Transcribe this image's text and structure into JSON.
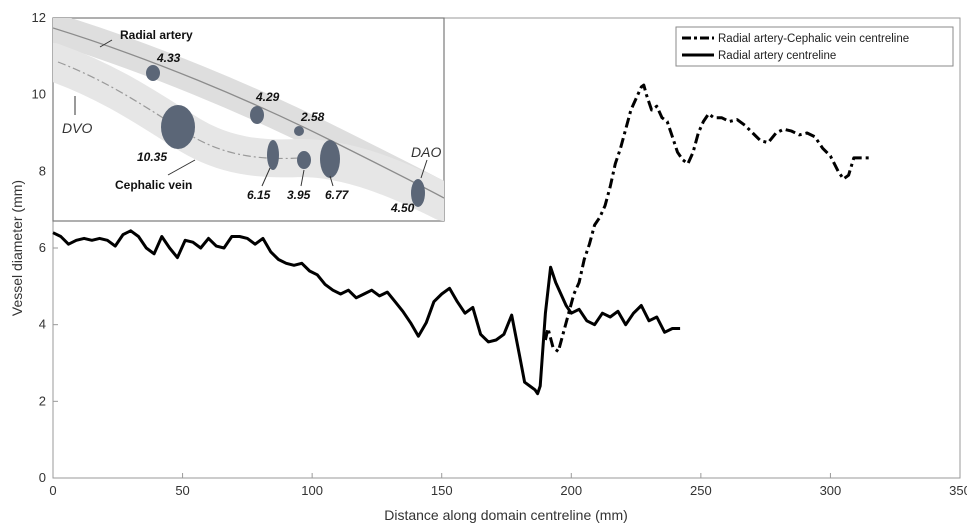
{
  "chart_data": {
    "type": "line",
    "xlabel": "Distance along domain centreline (mm)",
    "ylabel": "Vessel diameter (mm)",
    "xlim": [
      0,
      350
    ],
    "ylim": [
      0,
      12
    ],
    "xticks": [
      0,
      50,
      100,
      150,
      200,
      250,
      300,
      350
    ],
    "yticks": [
      0,
      2,
      4,
      6,
      8,
      10,
      12
    ],
    "grid": false,
    "legend_position": "top-right",
    "series": [
      {
        "name": "Radial artery-Cephalic vein centreline",
        "style": "dash-dot",
        "color": "#000000",
        "x": [
          190,
          191,
          193,
          195,
          197,
          199,
          201,
          203,
          205,
          207,
          209,
          211,
          213,
          215,
          217,
          219,
          221,
          223,
          225,
          227,
          228,
          229,
          231,
          233,
          235,
          237,
          239,
          241,
          243,
          245,
          247,
          249,
          251,
          253,
          255,
          258,
          261,
          264,
          267,
          270,
          273,
          276,
          279,
          282,
          285,
          288,
          291,
          294,
          297,
          300,
          303,
          305,
          307,
          309,
          311,
          313,
          315
        ],
        "y": [
          3.6,
          3.9,
          3.4,
          3.3,
          3.8,
          4.3,
          4.8,
          5.1,
          5.7,
          6.1,
          6.6,
          6.8,
          7.1,
          7.6,
          8.2,
          8.6,
          9.1,
          9.6,
          9.9,
          10.2,
          10.25,
          10.0,
          9.6,
          9.7,
          9.4,
          9.3,
          8.9,
          8.5,
          8.3,
          8.2,
          8.5,
          9.0,
          9.3,
          9.5,
          9.4,
          9.4,
          9.3,
          9.35,
          9.2,
          9.0,
          8.8,
          8.75,
          9.0,
          9.1,
          9.05,
          8.95,
          9.0,
          8.9,
          8.6,
          8.4,
          8.0,
          7.8,
          7.9,
          8.35,
          8.35,
          8.35,
          8.35
        ]
      },
      {
        "name": "Radial artery centreline",
        "style": "solid",
        "color": "#000000",
        "x": [
          0,
          3,
          6,
          9,
          12,
          15,
          18,
          21,
          24,
          27,
          30,
          33,
          36,
          39,
          42,
          45,
          48,
          51,
          54,
          57,
          60,
          63,
          66,
          69,
          72,
          75,
          78,
          81,
          84,
          87,
          90,
          93,
          96,
          99,
          102,
          105,
          108,
          111,
          114,
          117,
          120,
          123,
          126,
          129,
          132,
          135,
          138,
          141,
          144,
          147,
          150,
          153,
          156,
          159,
          162,
          165,
          168,
          171,
          174,
          177,
          180,
          182,
          184,
          186,
          187,
          188,
          190,
          192,
          194,
          196,
          198,
          200,
          203,
          206,
          209,
          212,
          215,
          218,
          221,
          224,
          227,
          230,
          233,
          236,
          239,
          242
        ],
        "y": [
          6.4,
          6.3,
          6.1,
          6.2,
          6.25,
          6.2,
          6.25,
          6.2,
          6.05,
          6.35,
          6.45,
          6.3,
          6.0,
          5.85,
          6.3,
          6.0,
          5.75,
          6.2,
          6.15,
          6.0,
          6.25,
          6.05,
          6.0,
          6.3,
          6.3,
          6.25,
          6.1,
          6.25,
          5.9,
          5.7,
          5.6,
          5.55,
          5.6,
          5.4,
          5.3,
          5.05,
          4.9,
          4.8,
          4.9,
          4.7,
          4.8,
          4.9,
          4.75,
          4.85,
          4.6,
          4.35,
          4.05,
          3.7,
          4.05,
          4.6,
          4.8,
          4.95,
          4.6,
          4.3,
          4.45,
          3.75,
          3.55,
          3.6,
          3.75,
          4.25,
          3.2,
          2.5,
          2.4,
          2.3,
          2.2,
          2.4,
          4.3,
          5.5,
          5.1,
          4.8,
          4.5,
          4.3,
          4.4,
          4.1,
          4.0,
          4.3,
          4.2,
          4.35,
          4.0,
          4.3,
          4.5,
          4.1,
          4.2,
          3.8,
          3.9,
          3.9
        ]
      }
    ]
  },
  "inset": {
    "artery_label": "Radial artery",
    "vein_label": "Cephalic vein",
    "dvo_label": "DVO",
    "dao_label": "DAO",
    "diameters": [
      "4.33",
      "4.29",
      "2.58",
      "10.35",
      "6.15",
      "3.95",
      "6.77",
      "4.50"
    ],
    "vessel_color": "#dcdcdc",
    "marker_color": "#5b6677"
  }
}
